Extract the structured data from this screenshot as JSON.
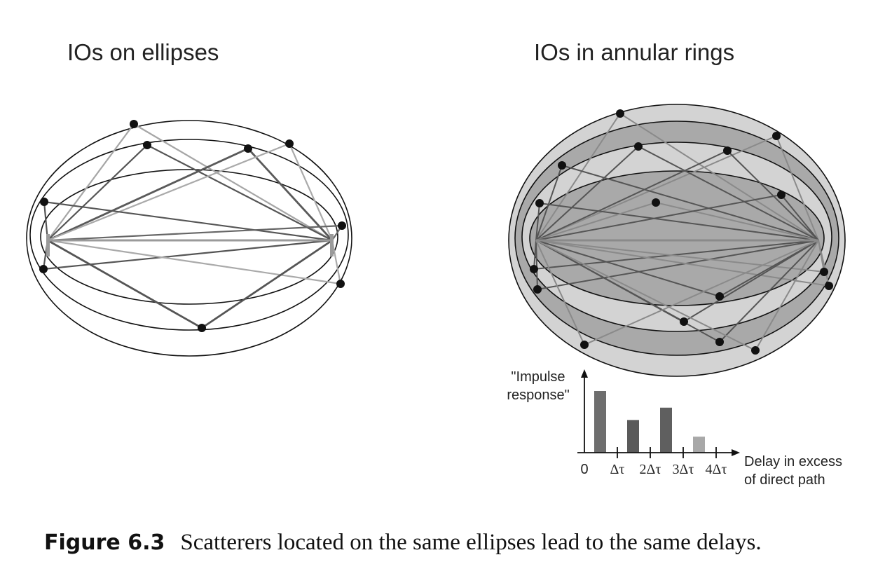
{
  "left_panel": {
    "title": "IOs on ellipses"
  },
  "right_panel": {
    "title": "IOs in annular rings"
  },
  "chart": {
    "ylabel_line1": "\"Impulse",
    "ylabel_line2": "response\"",
    "xlabel_line1": "Delay in excess",
    "xlabel_line2": "of direct path",
    "ticks": [
      "0",
      "Δτ",
      "2Δτ",
      "3Δτ",
      "4Δτ"
    ]
  },
  "chart_data": {
    "type": "bar",
    "categories": [
      "0–Δτ",
      "Δτ–2Δτ",
      "2Δτ–3Δτ",
      "3Δτ–4Δτ"
    ],
    "values": [
      1.0,
      0.53,
      0.73,
      0.26
    ],
    "bar_colors": [
      "#6e6e6e",
      "#5a5a5a",
      "#5f5f5f",
      "#a8a8a8"
    ],
    "title": "",
    "xlabel": "Delay in excess of direct path",
    "ylabel": "\"Impulse response\""
  },
  "caption": {
    "label": "Figure 6.3",
    "text": "Scatterers located on the same ellipses lead to the same delays."
  }
}
